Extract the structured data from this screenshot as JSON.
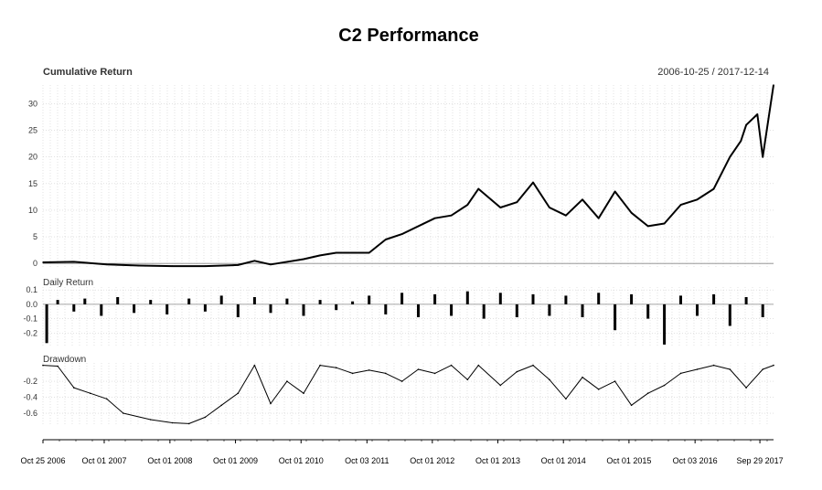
{
  "figure": {
    "title": "C2 Performance",
    "date_range": "2006-10-25 / 2017-12-14"
  },
  "chart_data": [
    {
      "type": "line",
      "title": "Cumulative Return",
      "ylim": [
        -1,
        33.5
      ],
      "yticks": [
        0,
        5,
        10,
        15,
        20,
        25,
        30
      ],
      "grid": true,
      "x": [
        "2006-10-25",
        "2007-04",
        "2007-10",
        "2008-04",
        "2008-10",
        "2009-04",
        "2009-10",
        "2010-01",
        "2010-04",
        "2010-10",
        "2011-01",
        "2011-04",
        "2011-10",
        "2012-01",
        "2012-04",
        "2012-10",
        "2013-01",
        "2013-04",
        "2013-06",
        "2013-10",
        "2014-01",
        "2014-04",
        "2014-07",
        "2014-10",
        "2015-01",
        "2015-04",
        "2015-07",
        "2015-10",
        "2016-01",
        "2016-04",
        "2016-07",
        "2016-10",
        "2017-01",
        "2017-04",
        "2017-06",
        "2017-07",
        "2017-09",
        "2017-10",
        "2017-12-14"
      ],
      "values": [
        0.2,
        0.3,
        -0.2,
        -0.4,
        -0.5,
        -0.5,
        -0.3,
        0.5,
        -0.2,
        0.8,
        1.5,
        2.0,
        2.0,
        4.5,
        5.5,
        8.5,
        9.0,
        11.0,
        14.0,
        10.5,
        11.5,
        15.2,
        10.5,
        9.0,
        12.0,
        8.5,
        13.5,
        9.5,
        7.0,
        7.5,
        11.0,
        12.0,
        14.0,
        20.0,
        23.0,
        26.0,
        28.0,
        20.0,
        33.5
      ]
    },
    {
      "type": "bar",
      "title": "Daily Return",
      "ylim": [
        -0.3,
        0.12
      ],
      "yticks": [
        -0.2,
        -0.1,
        0.0,
        0.1
      ],
      "ytick_labels": [
        "-0.2",
        "-0.1",
        "0.0",
        "0.1"
      ],
      "grid": true,
      "x": [
        "2006-11",
        "2007-01",
        "2007-04",
        "2007-06",
        "2007-09",
        "2007-12",
        "2008-03",
        "2008-06",
        "2008-09",
        "2009-01",
        "2009-04",
        "2009-07",
        "2009-10",
        "2010-01",
        "2010-04",
        "2010-07",
        "2010-10",
        "2011-01",
        "2011-04",
        "2011-07",
        "2011-10",
        "2012-01",
        "2012-04",
        "2012-07",
        "2012-10",
        "2013-01",
        "2013-04",
        "2013-07",
        "2013-10",
        "2014-01",
        "2014-04",
        "2014-07",
        "2014-10",
        "2015-01",
        "2015-04",
        "2015-07",
        "2015-10",
        "2016-01",
        "2016-04",
        "2016-07",
        "2016-10",
        "2017-01",
        "2017-04",
        "2017-07",
        "2017-10"
      ],
      "values": [
        -0.27,
        0.03,
        -0.05,
        0.04,
        -0.08,
        0.05,
        -0.06,
        0.03,
        -0.07,
        0.04,
        -0.05,
        0.06,
        -0.09,
        0.05,
        -0.06,
        0.04,
        -0.08,
        0.03,
        -0.04,
        0.02,
        0.06,
        -0.07,
        0.08,
        -0.09,
        0.07,
        -0.08,
        0.09,
        -0.1,
        0.08,
        -0.09,
        0.07,
        -0.08,
        0.06,
        -0.09,
        0.08,
        -0.18,
        0.07,
        -0.1,
        -0.28,
        0.06,
        -0.08,
        0.07,
        -0.15,
        0.05,
        -0.09
      ]
    },
    {
      "type": "area",
      "title": "Drawdown",
      "ylim": [
        -0.76,
        0.03
      ],
      "yticks": [
        -0.2,
        -0.4,
        -0.6
      ],
      "ytick_labels": [
        "-0.2",
        "-0.4",
        "-0.6"
      ],
      "grid": true,
      "x": [
        "2006-10-25",
        "2007-01",
        "2007-04",
        "2007-07",
        "2007-10",
        "2008-01",
        "2008-06",
        "2008-10",
        "2009-01",
        "2009-04",
        "2009-07",
        "2009-10",
        "2010-01",
        "2010-04",
        "2010-07",
        "2010-10",
        "2011-01",
        "2011-04",
        "2011-07",
        "2011-10",
        "2012-01",
        "2012-04",
        "2012-07",
        "2012-10",
        "2013-01",
        "2013-04",
        "2013-06",
        "2013-10",
        "2014-01",
        "2014-04",
        "2014-07",
        "2014-10",
        "2015-01",
        "2015-04",
        "2015-07",
        "2015-10",
        "2016-01",
        "2016-04",
        "2016-07",
        "2016-10",
        "2017-01",
        "2017-04",
        "2017-07",
        "2017-10",
        "2017-12-14"
      ],
      "values": [
        0.0,
        -0.01,
        -0.28,
        -0.35,
        -0.42,
        -0.6,
        -0.68,
        -0.72,
        -0.73,
        -0.65,
        -0.5,
        -0.35,
        0.0,
        -0.48,
        -0.2,
        -0.35,
        0.0,
        -0.03,
        -0.1,
        -0.06,
        -0.1,
        -0.2,
        -0.05,
        -0.1,
        0.0,
        -0.18,
        0.0,
        -0.25,
        -0.08,
        0.0,
        -0.18,
        -0.42,
        -0.15,
        -0.3,
        -0.2,
        -0.5,
        -0.35,
        -0.25,
        -0.1,
        -0.05,
        0.0,
        -0.05,
        -0.28,
        -0.05,
        0.0
      ]
    }
  ],
  "x_axis": {
    "ticks": [
      "2006-10-25",
      "2007-10-01",
      "2008-10-01",
      "2009-10-01",
      "2010-10-01",
      "2011-10-03",
      "2012-10-01",
      "2013-10-01",
      "2014-10-01",
      "2015-10-01",
      "2016-10-03",
      "2017-09-29"
    ],
    "labels": [
      "Oct 25 2006",
      "Oct 01 2007",
      "Oct 01 2008",
      "Oct 01 2009",
      "Oct 01 2010",
      "Oct 03 2011",
      "Oct 01 2012",
      "Oct 01 2013",
      "Oct 01 2014",
      "Oct 01 2015",
      "Oct 03 2016",
      "Sep 29 2017"
    ],
    "start": "2006-10-25",
    "end": "2017-12-14"
  }
}
